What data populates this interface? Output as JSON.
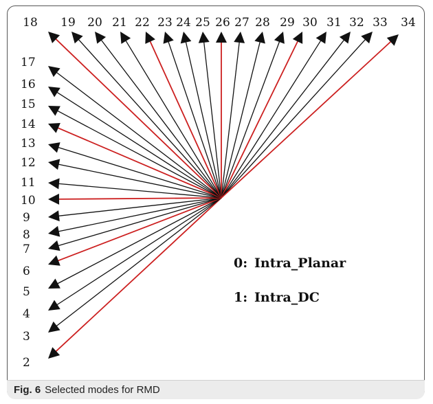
{
  "figure": {
    "caption_label": "Fig. 6",
    "caption_text": "Selected modes for RMD"
  },
  "diagram": {
    "colors": {
      "normal": "#111111",
      "selected": "#cc1f1f"
    },
    "modes": [
      {
        "label": "2",
        "selected": true
      },
      {
        "label": "3",
        "selected": false
      },
      {
        "label": "4",
        "selected": false
      },
      {
        "label": "5",
        "selected": false
      },
      {
        "label": "6",
        "selected": true
      },
      {
        "label": "7",
        "selected": false
      },
      {
        "label": "8",
        "selected": false
      },
      {
        "label": "9",
        "selected": false
      },
      {
        "label": "10",
        "selected": true
      },
      {
        "label": "11",
        "selected": false
      },
      {
        "label": "12",
        "selected": false
      },
      {
        "label": "13",
        "selected": false
      },
      {
        "label": "14",
        "selected": true
      },
      {
        "label": "15",
        "selected": false
      },
      {
        "label": "16",
        "selected": false
      },
      {
        "label": "17",
        "selected": false
      },
      {
        "label": "18",
        "selected": true
      },
      {
        "label": "19",
        "selected": false
      },
      {
        "label": "20",
        "selected": false
      },
      {
        "label": "21",
        "selected": false
      },
      {
        "label": "22",
        "selected": true
      },
      {
        "label": "23",
        "selected": false
      },
      {
        "label": "24",
        "selected": false
      },
      {
        "label": "25",
        "selected": false
      },
      {
        "label": "26",
        "selected": true
      },
      {
        "label": "27",
        "selected": false
      },
      {
        "label": "28",
        "selected": false
      },
      {
        "label": "29",
        "selected": false
      },
      {
        "label": "30",
        "selected": true
      },
      {
        "label": "31",
        "selected": false
      },
      {
        "label": "32",
        "selected": false
      },
      {
        "label": "33",
        "selected": false
      },
      {
        "label": "34",
        "selected": true
      }
    ],
    "legend": [
      {
        "number": "0:",
        "name": "Intra_Planar"
      },
      {
        "number": "1:",
        "name": "Intra_DC"
      }
    ]
  }
}
